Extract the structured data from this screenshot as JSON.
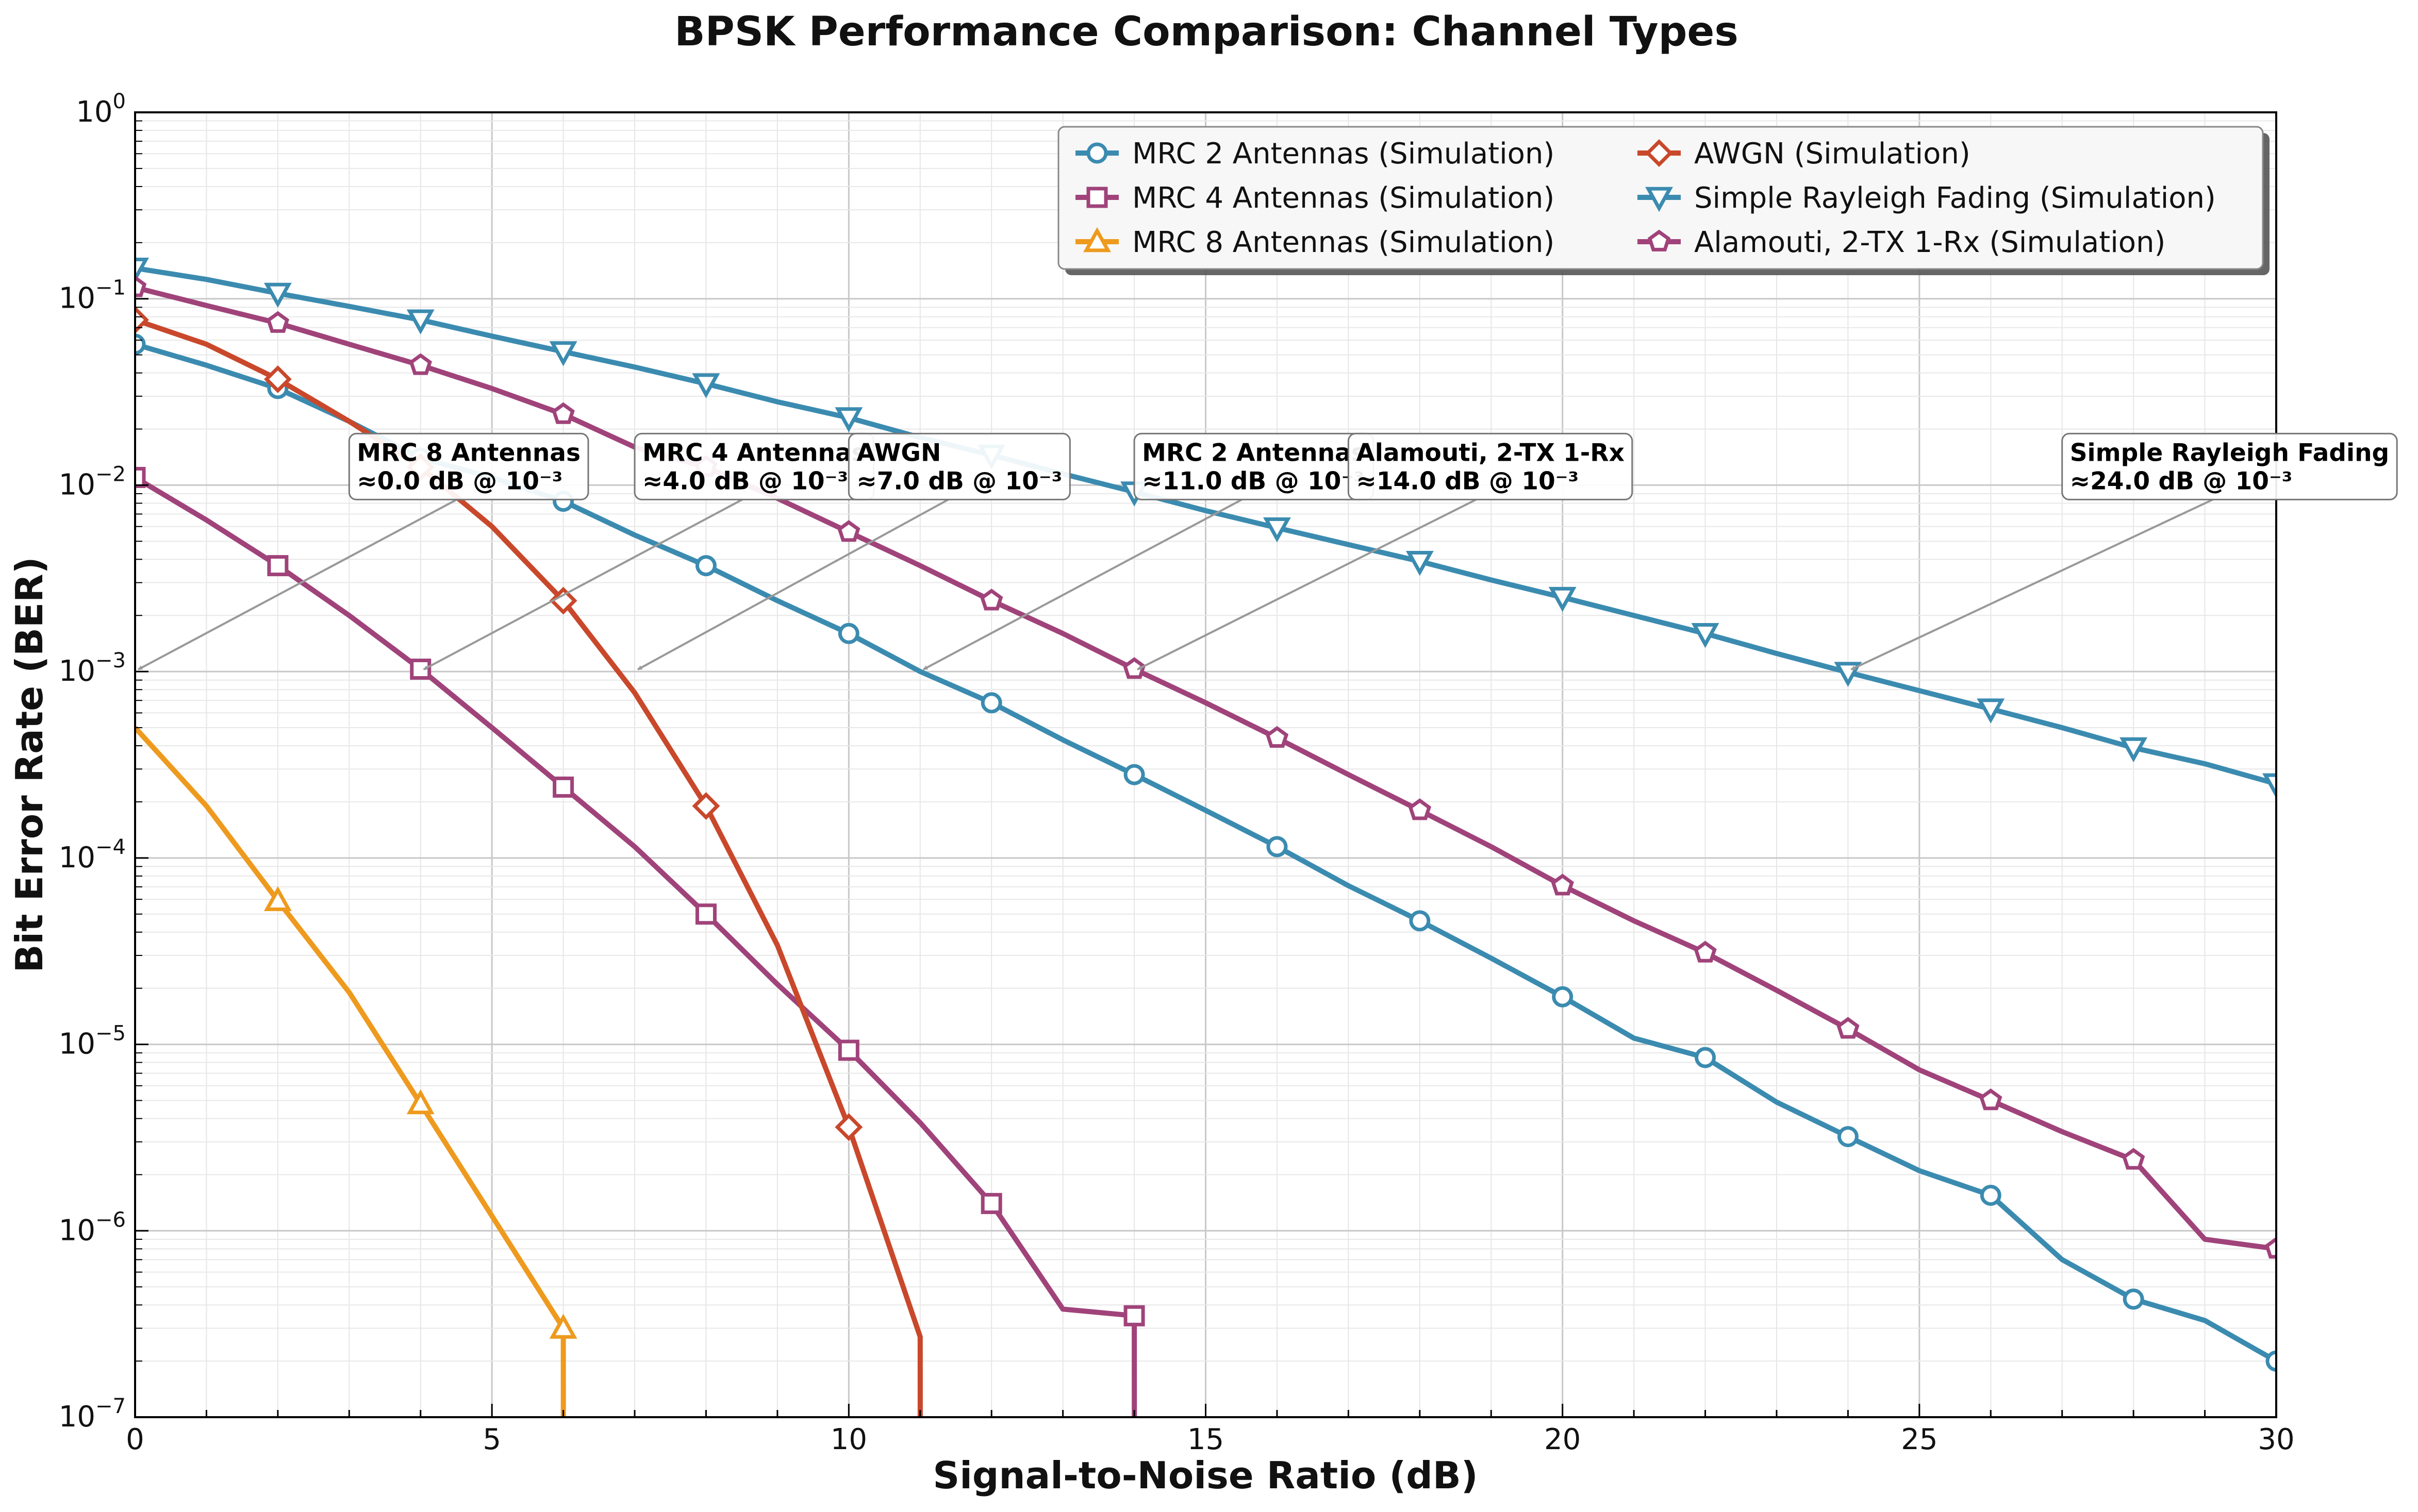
{
  "chart_data": {
    "type": "line",
    "title": "BPSK Performance Comparison: Channel Types",
    "xlabel": "Signal-to-Noise Ratio (dB)",
    "ylabel": "Bit Error Rate (BER)",
    "xlim": [
      0,
      30
    ],
    "ylim": [
      1e-07,
      1
    ],
    "yscale": "log",
    "grid": true,
    "legend_placement": "top-right",
    "xticks": [
      0,
      5,
      10,
      15,
      20,
      25,
      30
    ],
    "xtick_labels": [
      "0",
      "5",
      "10",
      "15",
      "20",
      "25",
      "30"
    ],
    "yticks": [
      1e-07,
      1e-06,
      1e-05,
      0.0001,
      0.001,
      0.01,
      0.1,
      1
    ],
    "ytick_labels": [
      {
        "base": "10",
        "exp": "−7"
      },
      {
        "base": "10",
        "exp": "−6"
      },
      {
        "base": "10",
        "exp": "−5"
      },
      {
        "base": "10",
        "exp": "−4"
      },
      {
        "base": "10",
        "exp": "−3"
      },
      {
        "base": "10",
        "exp": "−2"
      },
      {
        "base": "10",
        "exp": "−1"
      },
      {
        "base": "10",
        "exp": "0"
      }
    ],
    "series": [
      {
        "name": "MRC 2 Antennas (Simulation)",
        "color": "#3b8bb0",
        "marker": "circle",
        "x": [
          0,
          1,
          2,
          3,
          4,
          5,
          6,
          7,
          8,
          9,
          10,
          11,
          12,
          13,
          14,
          15,
          16,
          17,
          18,
          19,
          20,
          21,
          22,
          23,
          24,
          25,
          26,
          27,
          28,
          29,
          30
        ],
        "y": [
          0.057,
          0.044,
          0.033,
          0.022,
          0.014,
          0.011,
          0.0082,
          0.0054,
          0.0037,
          0.0024,
          0.0016,
          0.001,
          0.00068,
          0.00043,
          0.00028,
          0.00018,
          0.000115,
          7.1e-05,
          4.6e-05,
          2.9e-05,
          1.8e-05,
          1.08e-05,
          8.5e-06,
          4.9e-06,
          3.2e-06,
          2.1e-06,
          1.55e-06,
          7e-07,
          4.3e-07,
          3.3e-07,
          2e-07
        ],
        "marker_every": 2
      },
      {
        "name": "MRC 4 Antennas (Simulation)",
        "color": "#a0437a",
        "marker": "square",
        "x": [
          0,
          1,
          2,
          3,
          4,
          5,
          6,
          7,
          8,
          9,
          10,
          11,
          12,
          13,
          14,
          14.001
        ],
        "y": [
          0.011,
          0.0065,
          0.0037,
          0.002,
          0.00103,
          0.0005,
          0.00024,
          0.000115,
          5e-05,
          2.1e-05,
          9.3e-06,
          3.8e-06,
          1.4e-06,
          3.8e-07,
          3.5e-07,
          1e-07
        ],
        "marker_indices": [
          0,
          2,
          4,
          6,
          8,
          10,
          12,
          14
        ]
      },
      {
        "name": "MRC 8 Antennas (Simulation)",
        "color": "#ee9a1e",
        "marker": "triangle-up",
        "x": [
          0,
          1,
          2,
          3,
          4,
          5,
          6,
          6.001
        ],
        "y": [
          0.0005,
          0.00019,
          5.9e-05,
          1.9e-05,
          4.8e-06,
          1.2e-06,
          3e-07,
          1e-07
        ],
        "marker_indices": [
          2,
          4,
          6
        ]
      },
      {
        "name": "AWGN (Simulation)",
        "color": "#c9482b",
        "marker": "diamond",
        "x": [
          0,
          1,
          2,
          3,
          4,
          5,
          6,
          7,
          8,
          9,
          10,
          11,
          11.001
        ],
        "y": [
          0.077,
          0.057,
          0.037,
          0.022,
          0.0125,
          0.006,
          0.0024,
          0.00077,
          0.00019,
          3.4e-05,
          3.6e-06,
          2.7e-07,
          1e-07
        ],
        "marker_indices": [
          0,
          2,
          4,
          6,
          8,
          10
        ]
      },
      {
        "name": "Simple Rayleigh Fading (Simulation)",
        "color": "#3b8bb0",
        "marker": "triangle-down",
        "x": [
          0,
          1,
          2,
          3,
          4,
          5,
          6,
          7,
          8,
          9,
          10,
          11,
          12,
          13,
          14,
          15,
          16,
          17,
          18,
          19,
          20,
          21,
          22,
          23,
          24,
          25,
          26,
          27,
          28,
          29,
          30
        ],
        "y": [
          0.146,
          0.127,
          0.107,
          0.091,
          0.077,
          0.063,
          0.052,
          0.043,
          0.035,
          0.028,
          0.023,
          0.018,
          0.0145,
          0.0115,
          0.0092,
          0.0073,
          0.0059,
          0.0048,
          0.0039,
          0.0031,
          0.0025,
          0.002,
          0.0016,
          0.00125,
          0.00099,
          0.00079,
          0.00063,
          0.0005,
          0.00039,
          0.00032,
          0.00025
        ],
        "marker_every": 2
      },
      {
        "name": "Alamouti, 2-TX 1-Rx (Simulation)",
        "color": "#a0437a",
        "marker": "pentagon",
        "x": [
          0,
          1,
          2,
          3,
          4,
          5,
          6,
          7,
          8,
          9,
          10,
          11,
          12,
          13,
          14,
          15,
          16,
          17,
          18,
          19,
          20,
          21,
          22,
          23,
          24,
          25,
          26,
          27,
          28,
          29,
          30
        ],
        "y": [
          0.115,
          0.092,
          0.074,
          0.057,
          0.044,
          0.033,
          0.024,
          0.016,
          0.0125,
          0.0085,
          0.0056,
          0.0037,
          0.0024,
          0.0016,
          0.00103,
          0.00068,
          0.00044,
          0.00028,
          0.00018,
          0.000115,
          7.1e-05,
          4.6e-05,
          3.1e-05,
          1.95e-05,
          1.21e-05,
          7.3e-06,
          5e-06,
          3.4e-06,
          2.4e-06,
          9e-07,
          8e-07
        ],
        "marker_every": 2
      }
    ],
    "legend_order": [
      0,
      3,
      1,
      4,
      2,
      5
    ],
    "annotations": [
      {
        "line1": "MRC 8 Antennas",
        "line2": "≈0.0 dB @ 10⁻³",
        "target": [
          0,
          0.001
        ],
        "text_at": [
          3,
          0.01
        ]
      },
      {
        "line1": "MRC 4 Antennas",
        "line2": "≈4.0 dB @ 10⁻³",
        "target": [
          4,
          0.001
        ],
        "text_at": [
          7,
          0.01
        ]
      },
      {
        "line1": "AWGN",
        "line2": "≈7.0 dB @ 10⁻³",
        "target": [
          7,
          0.001
        ],
        "text_at": [
          10,
          0.01
        ]
      },
      {
        "line1": "MRC 2 Antennas",
        "line2": "≈11.0 dB @ 10⁻³",
        "target": [
          11,
          0.001
        ],
        "text_at": [
          14,
          0.01
        ]
      },
      {
        "line1": "Alamouti, 2-TX 1-Rx",
        "line2": "≈14.0 dB @ 10⁻³",
        "target": [
          14,
          0.001
        ],
        "text_at": [
          17,
          0.01
        ]
      },
      {
        "line1": "Simple Rayleigh Fading",
        "line2": "≈24.0 dB @ 10⁻³",
        "target": [
          24,
          0.001
        ],
        "text_at": [
          27,
          0.01
        ]
      }
    ]
  }
}
